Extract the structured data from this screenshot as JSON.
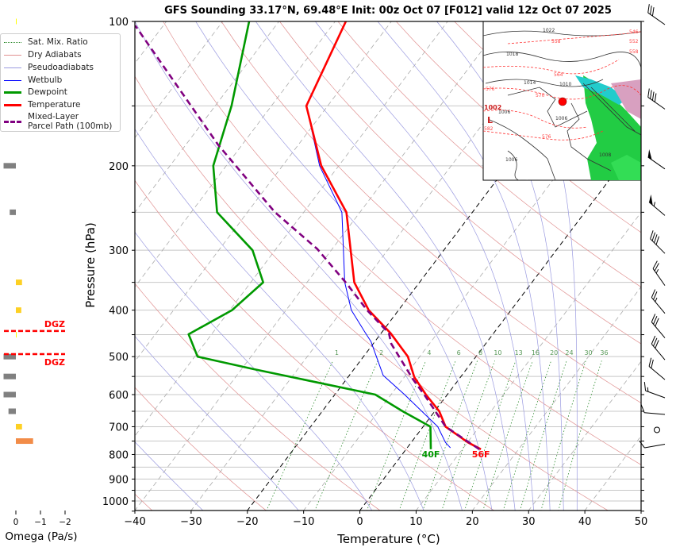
{
  "title": "GFS Sounding 33.17°N, 69.48°E Init: 00z Oct 07 [F012] valid 12z Oct 07 2025",
  "legend": [
    {
      "label": "Sat. Mix. Ratio",
      "color": "#2e8b2e",
      "style": "dotted"
    },
    {
      "label": "Dry Adiabats",
      "color": "#e09090",
      "style": "solid-thin"
    },
    {
      "label": "Pseudoadiabats",
      "color": "#9a9ae0",
      "style": "solid-thin"
    },
    {
      "label": "Wetbulb",
      "color": "#0000ff",
      "style": "solid"
    },
    {
      "label": "Dewpoint",
      "color": "#009900",
      "style": "solid-thick"
    },
    {
      "label": "Temperature",
      "color": "#ff0000",
      "style": "solid-thick"
    },
    {
      "label": "Mixed-Layer\nParcel Path (100mb)",
      "color": "#800080",
      "style": "dashed"
    }
  ],
  "chart_data": {
    "type": "skew-t",
    "title": "GFS Sounding 33.17°N, 69.48°E Init: 00z Oct 07 [F012] valid 12z Oct 07 2025",
    "xlabel": "Temperature (°C)",
    "ylabel": "Pressure (hPa)",
    "xlim": [
      -40,
      50
    ],
    "ylim": [
      1050,
      100
    ],
    "y_scale": "log",
    "grid": true,
    "x_ticks": [
      -40,
      -30,
      -20,
      -10,
      0,
      10,
      20,
      30,
      40,
      50
    ],
    "x_tick_labels": [
      "−40",
      "−30",
      "−20",
      "−10",
      "0",
      "10",
      "20",
      "30",
      "40",
      "50"
    ],
    "y_ticks": [
      100,
      200,
      300,
      400,
      500,
      600,
      700,
      800,
      900,
      1000
    ],
    "y_tick_labels": [
      "100",
      "200",
      "300",
      "400",
      "500",
      "600",
      "700",
      "800",
      "900",
      "1000"
    ],
    "highlighted_isotherms": [
      0,
      -20
    ],
    "mixing_ratio_labels": [
      "1",
      "2",
      "4",
      "6",
      "8",
      "10",
      "13",
      "16",
      "20",
      "24",
      "30",
      "36"
    ],
    "mixing_ratio_values": [
      1,
      2,
      4,
      6,
      8,
      10,
      13,
      16,
      20,
      24,
      30,
      36
    ],
    "series": [
      {
        "name": "Temperature",
        "color": "#ff0000",
        "p": [
          780,
          755,
          700,
          650,
          600,
          552,
          500,
          447,
          400,
          350,
          250,
          200,
          150,
          100
        ],
        "T": [
          13.3,
          10.1,
          4.0,
          0.8,
          -3.8,
          -8.2,
          -12.1,
          -18.3,
          -25.3,
          -31.6,
          -42.4,
          -53.1,
          -63.8,
          -68.1
        ]
      },
      {
        "name": "Dewpoint",
        "color": "#009900",
        "p": [
          780,
          700,
          650,
          600,
          531,
          500,
          449,
          400,
          350,
          300,
          250,
          200,
          150,
          100
        ],
        "T": [
          4.4,
          1.3,
          -5.7,
          -12.8,
          -37.8,
          -49.5,
          -54.1,
          -49.6,
          -47.8,
          -54.0,
          -65.4,
          -72.3,
          -77.1,
          -85.3
        ]
      },
      {
        "name": "Wetbulb",
        "color": "#0000ff",
        "p": [
          775,
          755,
          700,
          600,
          547,
          465,
          444,
          400,
          350,
          250,
          200,
          150
        ],
        "T": [
          7.7,
          6.1,
          2.6,
          -7.6,
          -14.0,
          -20.7,
          -23.1,
          -28.4,
          -33.3,
          -43.2,
          -53.4,
          -63.8
        ]
      },
      {
        "name": "Mixed-Layer Parcel Path (100mb)",
        "color": "#800080",
        "p": [
          780,
          700,
          607,
          556,
          470,
          447,
          400,
          352,
          298,
          250,
          181,
          102
        ],
        "T": [
          13.0,
          4.0,
          -3.5,
          -8.3,
          -16.8,
          -18.6,
          -25.6,
          -32.8,
          -42.7,
          -55.1,
          -74.2,
          -105.0
        ]
      }
    ],
    "surface_labels": {
      "temperature": "56F",
      "dewpoint": "40F"
    },
    "wind_barbs": [
      {
        "p": 100,
        "direction_deg": 305,
        "speed_kt": 30
      },
      {
        "p": 150,
        "direction_deg": 305,
        "speed_kt": 40
      },
      {
        "p": 200,
        "direction_deg": 305,
        "speed_kt": 50
      },
      {
        "p": 250,
        "direction_deg": 310,
        "speed_kt": 55
      },
      {
        "p": 300,
        "direction_deg": 315,
        "speed_kt": 40
      },
      {
        "p": 350,
        "direction_deg": 325,
        "speed_kt": 25
      },
      {
        "p": 400,
        "direction_deg": 320,
        "speed_kt": 25
      },
      {
        "p": 450,
        "direction_deg": 320,
        "speed_kt": 30
      },
      {
        "p": 500,
        "direction_deg": 320,
        "speed_kt": 30
      },
      {
        "p": 550,
        "direction_deg": 310,
        "speed_kt": 20
      },
      {
        "p": 600,
        "direction_deg": 290,
        "speed_kt": 15
      },
      {
        "p": 650,
        "direction_deg": 275,
        "speed_kt": 10
      },
      {
        "p": 700,
        "direction_deg": 0,
        "speed_kt": 0
      },
      {
        "p": 750,
        "direction_deg": 260,
        "speed_kt": 10
      }
    ]
  },
  "omega_panel": {
    "xlabel": "Omega (Pa/s)",
    "ticks": [
      0,
      -1,
      -2
    ],
    "tick_labels": [
      "0",
      "−1",
      "−2"
    ],
    "bars": [
      {
        "p": 100,
        "omega": -0.03,
        "color": "#ffff00"
      },
      {
        "p": 150,
        "omega": 0.05,
        "color": "#808080"
      },
      {
        "p": 200,
        "omega": 0.5,
        "color": "#808080"
      },
      {
        "p": 250,
        "omega": 0.25,
        "color": "#808080"
      },
      {
        "p": 350,
        "omega": -0.25,
        "color": "#fdd023"
      },
      {
        "p": 400,
        "omega": -0.22,
        "color": "#fdd023"
      },
      {
        "p": 450,
        "omega": -0.02,
        "color": "#ffff00"
      },
      {
        "p": 500,
        "omega": 0.5,
        "color": "#808080"
      },
      {
        "p": 550,
        "omega": 0.5,
        "color": "#808080"
      },
      {
        "p": 600,
        "omega": 0.5,
        "color": "#808080"
      },
      {
        "p": 650,
        "omega": 0.3,
        "color": "#808080"
      },
      {
        "p": 700,
        "omega": -0.25,
        "color": "#fdd023"
      },
      {
        "p": 750,
        "omega": -0.7,
        "color": "#f28c48"
      }
    ],
    "dgz": {
      "label": "DGZ",
      "top_p": 442,
      "bottom_p": 494,
      "color": "#ff0000"
    }
  },
  "inset_map": {
    "labels": [
      "1022",
      "1018",
      "1014",
      "1010",
      "1006",
      "1006",
      "1002",
      "L",
      "558",
      "564",
      "570",
      "576",
      "576",
      "582",
      "546",
      "552",
      "558",
      "1008",
      "1006"
    ],
    "marker_color": "#ff0000"
  }
}
